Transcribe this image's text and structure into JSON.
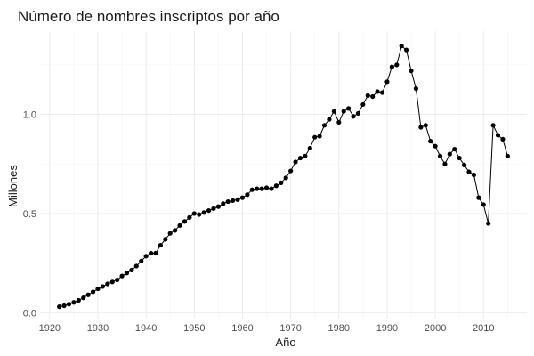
{
  "chart_data": {
    "type": "line",
    "title": "Número de nombres inscriptos por año",
    "xlabel": "Año",
    "ylabel": "Millones",
    "xlim": [
      1918,
      2019
    ],
    "ylim": [
      -0.03,
      1.42
    ],
    "x_ticks": [
      1920,
      1930,
      1940,
      1950,
      1960,
      1970,
      1980,
      1990,
      2000,
      2010
    ],
    "y_ticks": [
      0.0,
      0.5,
      1.0
    ],
    "y_tick_labels": [
      "0.0",
      "0.5",
      "1.0"
    ],
    "grid": true,
    "legend": "none",
    "colors": {
      "line": "#000000",
      "points": "#000000",
      "grid": "#ebebeb"
    },
    "series": [
      {
        "x": [
          1922,
          1923,
          1924,
          1925,
          1926,
          1927,
          1928,
          1929,
          1930,
          1931,
          1932,
          1933,
          1934,
          1935,
          1936,
          1937,
          1938,
          1939,
          1940,
          1941,
          1942,
          1943,
          1944,
          1945,
          1946,
          1947,
          1948,
          1949,
          1950,
          1951,
          1952,
          1953,
          1954,
          1955,
          1956,
          1957,
          1958,
          1959,
          1960,
          1961,
          1962,
          1963,
          1964,
          1965,
          1966,
          1967,
          1968,
          1969,
          1970,
          1971,
          1972,
          1973,
          1974,
          1975,
          1976,
          1977,
          1978,
          1979,
          1980,
          1981,
          1982,
          1983,
          1984,
          1985,
          1986,
          1987,
          1988,
          1989,
          1990,
          1991,
          1992,
          1993,
          1994,
          1995,
          1996,
          1997,
          1998,
          1999,
          2000,
          2001,
          2002,
          2003,
          2004,
          2005,
          2006,
          2007,
          2008,
          2009,
          2010,
          2011,
          2012,
          2013,
          2014,
          2015
        ],
        "values": [
          0.03,
          0.035,
          0.043,
          0.052,
          0.062,
          0.075,
          0.09,
          0.105,
          0.12,
          0.132,
          0.145,
          0.155,
          0.165,
          0.185,
          0.2,
          0.215,
          0.235,
          0.26,
          0.285,
          0.3,
          0.3,
          0.34,
          0.37,
          0.4,
          0.415,
          0.44,
          0.46,
          0.48,
          0.5,
          0.495,
          0.505,
          0.515,
          0.525,
          0.535,
          0.55,
          0.56,
          0.565,
          0.57,
          0.58,
          0.595,
          0.62,
          0.625,
          0.625,
          0.63,
          0.625,
          0.64,
          0.655,
          0.68,
          0.715,
          0.76,
          0.78,
          0.79,
          0.83,
          0.885,
          0.89,
          0.945,
          0.975,
          1.015,
          0.96,
          1.015,
          1.03,
          0.99,
          1.005,
          1.05,
          1.095,
          1.09,
          1.115,
          1.11,
          1.165,
          1.24,
          1.25,
          1.345,
          1.325,
          1.22,
          1.13,
          0.935,
          0.945,
          0.865,
          0.84,
          0.79,
          0.75,
          0.8,
          0.825,
          0.78,
          0.745,
          0.71,
          0.695,
          0.58,
          0.545,
          0.45,
          0.945,
          0.895,
          0.875,
          0.79
        ]
      }
    ]
  }
}
